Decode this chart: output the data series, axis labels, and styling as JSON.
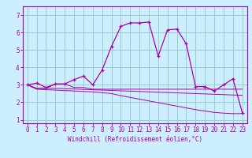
{
  "title": "",
  "xlabel": "Windchill (Refroidissement éolien,°C)",
  "bg_color": "#cceeff",
  "grid_color": "#99cccc",
  "line_color": "#aa00aa",
  "spine_color": "#aa00aa",
  "x_values": [
    0,
    1,
    2,
    3,
    4,
    5,
    6,
    7,
    8,
    9,
    10,
    11,
    12,
    13,
    14,
    15,
    16,
    17,
    18,
    19,
    20,
    21,
    22,
    23
  ],
  "line1_y": [
    3.0,
    3.1,
    2.85,
    3.05,
    3.05,
    3.3,
    3.5,
    3.0,
    3.85,
    5.2,
    6.35,
    6.55,
    6.55,
    6.6,
    4.65,
    6.15,
    6.2,
    5.35,
    2.9,
    2.9,
    2.65,
    3.0,
    3.35,
    1.4
  ],
  "line2_y": [
    3.0,
    2.8,
    2.8,
    3.05,
    3.05,
    2.85,
    2.85,
    2.75,
    2.75,
    2.75,
    2.75,
    2.75,
    2.75,
    2.75,
    2.75,
    2.75,
    2.75,
    2.75,
    2.75,
    2.75,
    2.75,
    2.75,
    2.75,
    2.75
  ],
  "line3_y": [
    3.0,
    2.8,
    2.8,
    2.8,
    2.78,
    2.76,
    2.74,
    2.72,
    2.7,
    2.68,
    2.66,
    2.64,
    2.62,
    2.6,
    2.58,
    2.56,
    2.54,
    2.52,
    2.5,
    2.48,
    2.46,
    2.44,
    2.42,
    2.4
  ],
  "line4_y": [
    3.0,
    2.75,
    2.72,
    2.7,
    2.67,
    2.65,
    2.62,
    2.6,
    2.55,
    2.5,
    2.38,
    2.28,
    2.18,
    2.08,
    1.98,
    1.88,
    1.78,
    1.68,
    1.58,
    1.5,
    1.42,
    1.38,
    1.35,
    1.35
  ],
  "ylim": [
    0.8,
    7.5
  ],
  "xlim": [
    -0.5,
    23.5
  ],
  "yticks": [
    1,
    2,
    3,
    4,
    5,
    6,
    7
  ],
  "xticks": [
    0,
    1,
    2,
    3,
    4,
    5,
    6,
    7,
    8,
    9,
    10,
    11,
    12,
    13,
    14,
    15,
    16,
    17,
    18,
    19,
    20,
    21,
    22,
    23
  ],
  "tick_fontsize": 5.5,
  "xlabel_fontsize": 5.5,
  "tick_color": "#aa00aa"
}
